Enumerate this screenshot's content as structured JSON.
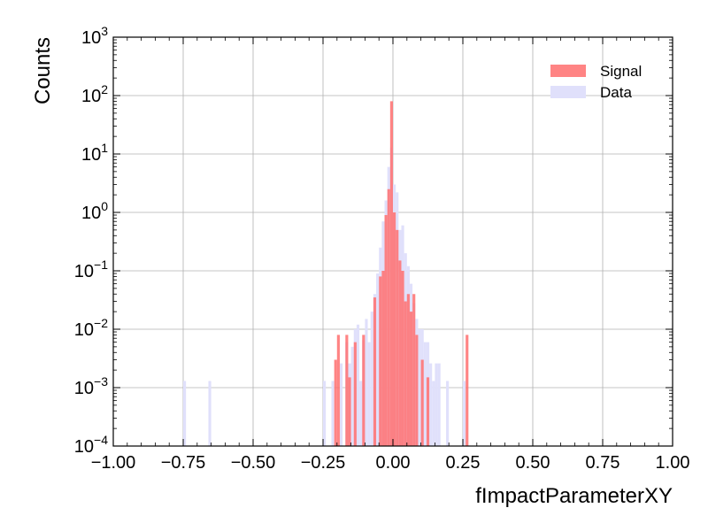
{
  "chart_data": {
    "type": "bar",
    "xlabel": "fImpactParameterXY",
    "ylabel": "Counts",
    "xlim": [
      -1.0,
      1.0
    ],
    "ylim": [
      0.0001,
      1000
    ],
    "yscale": "log",
    "grid": true,
    "legend_position": "top-right",
    "x_ticks": [
      "−1.00",
      "−0.75",
      "−0.50",
      "−0.25",
      "0.00",
      "0.25",
      "0.50",
      "0.75",
      "1.00"
    ],
    "y_ticks": [
      {
        "base": "10",
        "exp": "−4"
      },
      {
        "base": "10",
        "exp": "−3"
      },
      {
        "base": "10",
        "exp": "−2"
      },
      {
        "base": "10",
        "exp": "−1"
      },
      {
        "base": "10",
        "exp": "0"
      },
      {
        "base": "10",
        "exp": "1"
      },
      {
        "base": "10",
        "exp": "2"
      },
      {
        "base": "10",
        "exp": "3"
      }
    ],
    "bin_width": 0.01,
    "series": [
      {
        "name": "Data",
        "color": "#e0e0fb",
        "x": [
          -0.745,
          -0.655,
          -0.245,
          -0.215,
          -0.185,
          -0.165,
          -0.155,
          -0.145,
          -0.135,
          -0.125,
          -0.115,
          -0.105,
          -0.095,
          -0.085,
          -0.075,
          -0.065,
          -0.055,
          -0.045,
          -0.035,
          -0.025,
          -0.015,
          -0.005,
          0.005,
          0.015,
          0.025,
          0.035,
          0.045,
          0.055,
          0.065,
          0.075,
          0.085,
          0.095,
          0.105,
          0.115,
          0.125,
          0.135,
          0.145,
          0.155,
          0.165,
          0.195,
          0.255
        ],
        "values": [
          0.0013,
          0.0013,
          0.0013,
          0.0013,
          0.0026,
          0.006,
          0.0026,
          0.005,
          0.01,
          0.012,
          0.0013,
          0.0065,
          0.015,
          0.006,
          0.02,
          0.04,
          0.09,
          0.25,
          0.7,
          1.6,
          6,
          13,
          3,
          2.2,
          0.5,
          0.6,
          0.2,
          0.12,
          0.06,
          0.028,
          0.015,
          0.01,
          0.01,
          0.006,
          0.006,
          0.0026,
          0.0013,
          0.0026,
          0.0026,
          0.0013,
          0.0013
        ]
      },
      {
        "name": "Signal",
        "color": "#ff6f6f",
        "x": [
          -0.205,
          -0.195,
          -0.165,
          -0.155,
          -0.135,
          -0.105,
          -0.065,
          -0.045,
          -0.035,
          -0.025,
          -0.015,
          -0.005,
          0.005,
          0.015,
          0.025,
          0.035,
          0.045,
          0.055,
          0.065,
          0.075,
          0.085,
          0.105,
          0.125,
          0.265
        ],
        "values": [
          0.003,
          0.008,
          0.008,
          0.0015,
          0.006,
          0.008,
          0.035,
          0.08,
          0.1,
          0.9,
          2.5,
          80,
          1.0,
          0.5,
          0.15,
          0.1,
          0.03,
          0.04,
          0.02,
          0.04,
          0.008,
          0.003,
          0.0015,
          0.008
        ]
      }
    ]
  }
}
